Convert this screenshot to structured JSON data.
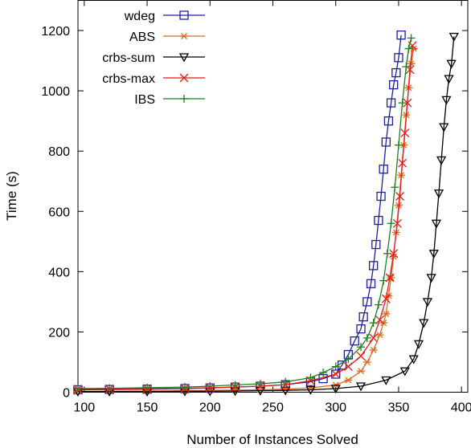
{
  "chart_data": {
    "type": "line",
    "title": "",
    "xlabel": "Number of Instances Solved",
    "ylabel": "Time (s)",
    "xlim": [
      95,
      405
    ],
    "ylim": [
      0,
      1300
    ],
    "xticks": [
      "100",
      "150",
      "200",
      "250",
      "300",
      "350",
      "400"
    ],
    "yticks": [
      "0",
      "200",
      "400",
      "600",
      "800",
      "1000",
      "1200"
    ],
    "grid": false,
    "legend_position": "top-left",
    "series": [
      {
        "name": "wdeg",
        "color": "#1f1fa0",
        "marker": "square",
        "x": [
          95,
          120,
          150,
          180,
          200,
          220,
          240,
          260,
          280,
          290,
          300,
          305,
          310,
          315,
          320,
          322,
          325,
          328,
          330,
          332,
          334,
          336,
          338,
          340,
          342,
          344,
          346,
          348,
          350,
          352
        ],
        "y": [
          8,
          9,
          10,
          12,
          14,
          17,
          20,
          25,
          35,
          45,
          60,
          90,
          125,
          170,
          210,
          250,
          300,
          360,
          420,
          490,
          570,
          650,
          740,
          830,
          900,
          960,
          1020,
          1060,
          1110,
          1185
        ]
      },
      {
        "name": "ABS",
        "color": "#e06a1a",
        "marker": "asterisk",
        "x": [
          95,
          120,
          150,
          180,
          200,
          220,
          240,
          260,
          280,
          300,
          310,
          320,
          325,
          330,
          335,
          338,
          340,
          342,
          344,
          346,
          348,
          350,
          352,
          354,
          356,
          358,
          360,
          362
        ],
        "y": [
          3,
          3,
          4,
          5,
          6,
          7,
          8,
          10,
          14,
          24,
          40,
          70,
          100,
          140,
          190,
          230,
          260,
          320,
          380,
          450,
          530,
          620,
          720,
          820,
          920,
          1010,
          1090,
          1140
        ]
      },
      {
        "name": "crbs-sum",
        "color": "#000000",
        "marker": "triangle-down",
        "x": [
          95,
          120,
          150,
          180,
          200,
          220,
          240,
          260,
          280,
          300,
          320,
          340,
          355,
          362,
          366,
          370,
          373,
          376,
          378,
          380,
          382,
          384,
          386,
          388,
          390,
          392,
          394
        ],
        "y": [
          2,
          2,
          2,
          3,
          3,
          4,
          5,
          6,
          8,
          12,
          20,
          40,
          70,
          110,
          160,
          230,
          300,
          380,
          460,
          560,
          660,
          770,
          880,
          970,
          1040,
          1090,
          1180
        ]
      },
      {
        "name": "crbs-max",
        "color": "#e81a1a",
        "marker": "cross",
        "x": [
          95,
          120,
          150,
          180,
          200,
          220,
          240,
          260,
          280,
          300,
          310,
          320,
          330,
          335,
          340,
          343,
          346,
          349,
          351,
          353,
          355,
          357,
          359,
          361
        ],
        "y": [
          10,
          11,
          12,
          13,
          15,
          17,
          20,
          25,
          38,
          60,
          85,
          120,
          180,
          240,
          310,
          380,
          460,
          560,
          650,
          760,
          860,
          960,
          1070,
          1150
        ]
      },
      {
        "name": "IBS",
        "color": "#1f7f1f",
        "marker": "plus",
        "x": [
          95,
          120,
          150,
          180,
          200,
          220,
          240,
          260,
          280,
          290,
          300,
          310,
          320,
          325,
          330,
          334,
          338,
          341,
          344,
          347,
          350,
          353,
          356,
          358,
          360
        ],
        "y": [
          12,
          13,
          15,
          17,
          20,
          24,
          28,
          34,
          48,
          65,
          85,
          110,
          150,
          180,
          230,
          290,
          370,
          460,
          560,
          680,
          820,
          960,
          1080,
          1140,
          1175
        ]
      }
    ]
  }
}
